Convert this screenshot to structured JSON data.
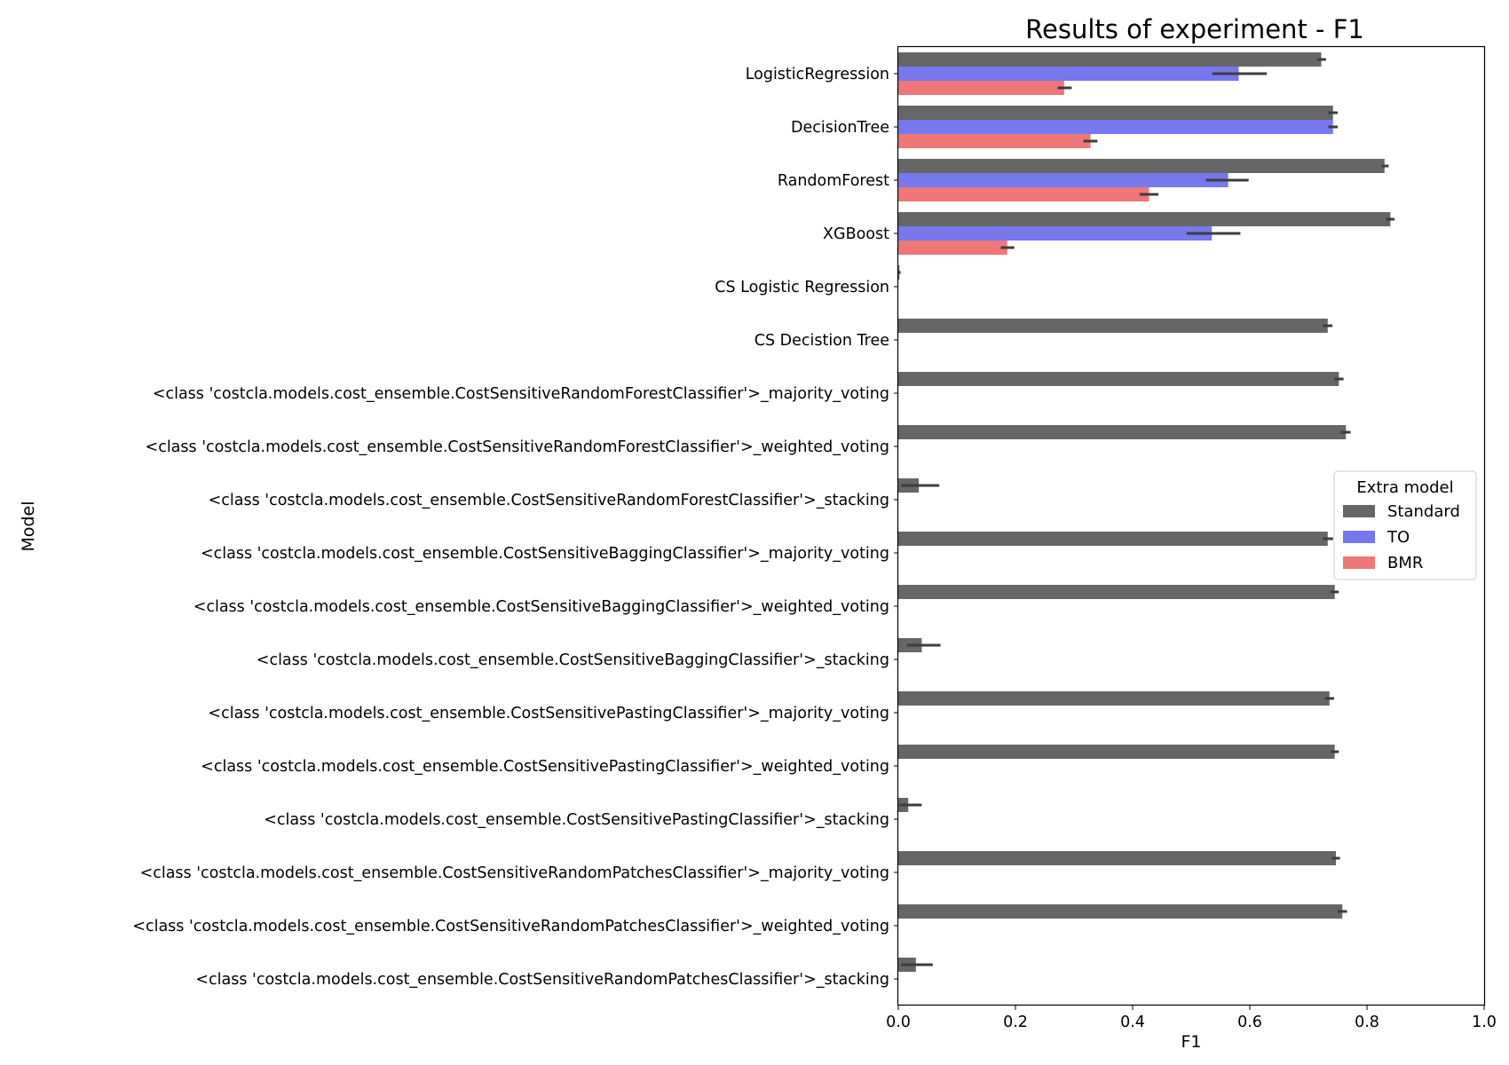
{
  "chart_data": {
    "type": "bar",
    "orientation": "horizontal",
    "title": "Results of experiment - F1",
    "xlabel": "F1",
    "ylabel": "Model",
    "xlim": [
      0.0,
      1.0
    ],
    "xticks": [
      "0.0",
      "0.2",
      "0.4",
      "0.6",
      "0.8",
      "1.0"
    ],
    "grid": false,
    "legend": {
      "title": "Extra model",
      "placement": "center-right"
    },
    "categories": [
      "LogisticRegression",
      "DecisionTree",
      "RandomForest",
      "XGBoost",
      "CS Logistic Regression",
      "CS Decistion Tree",
      "<class 'costcla.models.cost_ensemble.CostSensitiveRandomForestClassifier'>_majority_voting",
      "<class 'costcla.models.cost_ensemble.CostSensitiveRandomForestClassifier'>_weighted_voting",
      "<class 'costcla.models.cost_ensemble.CostSensitiveRandomForestClassifier'>_stacking",
      "<class 'costcla.models.cost_ensemble.CostSensitiveBaggingClassifier'>_majority_voting",
      "<class 'costcla.models.cost_ensemble.CostSensitiveBaggingClassifier'>_weighted_voting",
      "<class 'costcla.models.cost_ensemble.CostSensitiveBaggingClassifier'>_stacking",
      "<class 'costcla.models.cost_ensemble.CostSensitivePastingClassifier'>_majority_voting",
      "<class 'costcla.models.cost_ensemble.CostSensitivePastingClassifier'>_weighted_voting",
      "<class 'costcla.models.cost_ensemble.CostSensitivePastingClassifier'>_stacking",
      "<class 'costcla.models.cost_ensemble.CostSensitiveRandomPatchesClassifier'>_majority_voting",
      "<class 'costcla.models.cost_ensemble.CostSensitiveRandomPatchesClassifier'>_weighted_voting",
      "<class 'costcla.models.cost_ensemble.CostSensitiveRandomPatchesClassifier'>_stacking"
    ],
    "series": [
      {
        "name": "Standard",
        "color": "#666666",
        "values": [
          0.722,
          0.742,
          0.83,
          0.84,
          0.002,
          0.733,
          0.752,
          0.764,
          0.035,
          0.733,
          0.745,
          0.04,
          0.736,
          0.745,
          0.017,
          0.747,
          0.758,
          0.03
        ],
        "error": [
          [
            0.715,
            0.73
          ],
          [
            0.734,
            0.75
          ],
          [
            0.825,
            0.837
          ],
          [
            0.833,
            0.847
          ],
          [
            0.0,
            0.004
          ],
          [
            0.725,
            0.741
          ],
          [
            0.744,
            0.76
          ],
          [
            0.755,
            0.772
          ],
          [
            0.005,
            0.07
          ],
          [
            0.725,
            0.742
          ],
          [
            0.738,
            0.752
          ],
          [
            0.015,
            0.072
          ],
          [
            0.728,
            0.744
          ],
          [
            0.738,
            0.752
          ],
          [
            0.002,
            0.04
          ],
          [
            0.74,
            0.754
          ],
          [
            0.75,
            0.766
          ],
          [
            0.005,
            0.059
          ]
        ]
      },
      {
        "name": "TO",
        "color": "#7777ee",
        "values": [
          0.581,
          0.742,
          0.563,
          0.535,
          null,
          null,
          null,
          null,
          null,
          null,
          null,
          null,
          null,
          null,
          null,
          null,
          null,
          null
        ],
        "error": [
          [
            0.536,
            0.629
          ],
          [
            0.734,
            0.75
          ],
          [
            0.525,
            0.598
          ],
          [
            0.492,
            0.584
          ],
          null,
          null,
          null,
          null,
          null,
          null,
          null,
          null,
          null,
          null,
          null,
          null,
          null,
          null
        ]
      },
      {
        "name": "BMR",
        "color": "#ee7777",
        "values": [
          0.283,
          0.328,
          0.428,
          0.186,
          null,
          null,
          null,
          null,
          null,
          null,
          null,
          null,
          null,
          null,
          null,
          null,
          null,
          null
        ],
        "error": [
          [
            0.272,
            0.296
          ],
          [
            0.316,
            0.34
          ],
          [
            0.412,
            0.444
          ],
          [
            0.175,
            0.198
          ],
          null,
          null,
          null,
          null,
          null,
          null,
          null,
          null,
          null,
          null,
          null,
          null,
          null,
          null
        ]
      }
    ]
  }
}
